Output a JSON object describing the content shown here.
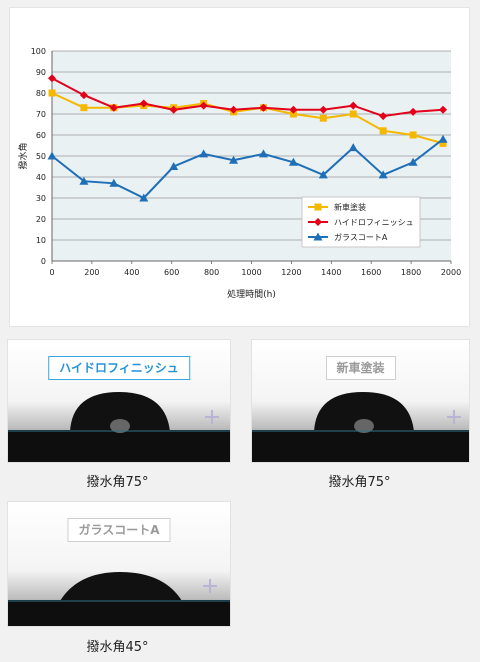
{
  "chart_data": {
    "type": "line",
    "title": "",
    "xlabel": "処理時間(h)",
    "ylabel": "撥水角",
    "xlim": [
      0,
      2000
    ],
    "ylim": [
      0,
      100
    ],
    "xticks": [
      "0",
      "200",
      "400",
      "600",
      "800",
      "1000",
      "1200",
      "1400",
      "1600",
      "1800",
      "2000"
    ],
    "yticks": [
      "0",
      "10",
      "20",
      "30",
      "40",
      "50",
      "60",
      "70",
      "80",
      "90",
      "100"
    ],
    "grid": true,
    "legend_position": "bottom-right",
    "series": [
      {
        "name": "新車塗装",
        "color": "#f5b800",
        "marker": "square",
        "points": [
          [
            0,
            80
          ],
          [
            160,
            73
          ],
          [
            310,
            73
          ],
          [
            460,
            74
          ],
          [
            610,
            73
          ],
          [
            760,
            75
          ],
          [
            910,
            71
          ],
          [
            1060,
            73
          ],
          [
            1210,
            70
          ],
          [
            1360,
            68
          ],
          [
            1510,
            70
          ],
          [
            1660,
            62
          ],
          [
            1810,
            60
          ],
          [
            1960,
            56
          ]
        ]
      },
      {
        "name": "ハイドロフィニッシュ",
        "color": "#e2001a",
        "marker": "diamond",
        "points": [
          [
            0,
            87
          ],
          [
            160,
            79
          ],
          [
            310,
            73
          ],
          [
            460,
            75
          ],
          [
            610,
            72
          ],
          [
            760,
            74
          ],
          [
            910,
            72
          ],
          [
            1060,
            73
          ],
          [
            1210,
            72
          ],
          [
            1360,
            72
          ],
          [
            1510,
            74
          ],
          [
            1660,
            69
          ],
          [
            1810,
            71
          ],
          [
            1960,
            72
          ]
        ]
      },
      {
        "name": "ガラスコートA",
        "color": "#1f6fb8",
        "marker": "triangle",
        "points": [
          [
            0,
            50
          ],
          [
            160,
            38
          ],
          [
            310,
            37
          ],
          [
            460,
            30
          ],
          [
            610,
            45
          ],
          [
            760,
            51
          ],
          [
            910,
            48
          ],
          [
            1060,
            51
          ],
          [
            1210,
            47
          ],
          [
            1360,
            41
          ],
          [
            1510,
            54
          ],
          [
            1660,
            41
          ],
          [
            1810,
            47
          ],
          [
            1960,
            58
          ]
        ]
      }
    ]
  },
  "photos": [
    {
      "label": "ハイドロフィニッシュ",
      "caption": "撥水角75°",
      "active": true
    },
    {
      "label": "新車塗装",
      "caption": "撥水角75°",
      "active": false
    },
    {
      "label": "ガラスコートA",
      "caption": "撥水角45°",
      "active": false
    }
  ]
}
